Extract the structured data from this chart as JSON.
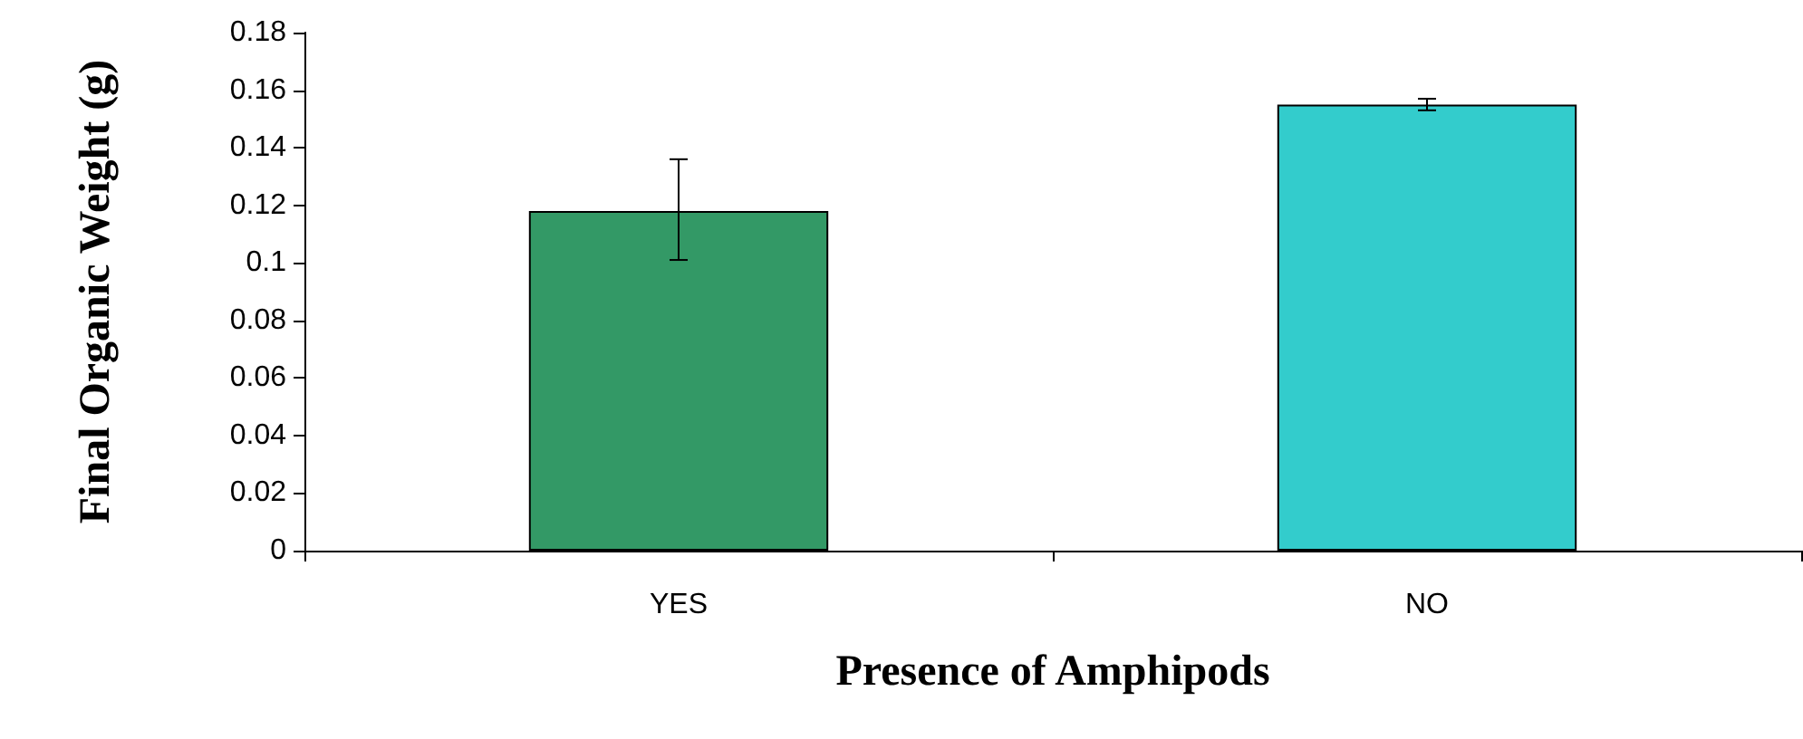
{
  "chart_data": {
    "type": "bar",
    "xlabel": "Presence of Amphipods",
    "ylabel": "Final Organic Weight (g)",
    "categories": [
      "YES",
      "NO"
    ],
    "values": [
      0.118,
      0.155
    ],
    "colors": [
      "#339966",
      "#33cccc"
    ],
    "errors": [
      [
        0.101,
        0.136
      ],
      [
        0.153,
        0.157
      ]
    ],
    "ylim": [
      0,
      0.18
    ],
    "yticks": [
      0,
      0.02,
      0.04,
      0.06,
      0.08,
      0.1,
      0.12,
      0.14,
      0.16,
      0.18
    ],
    "grid": false
  }
}
